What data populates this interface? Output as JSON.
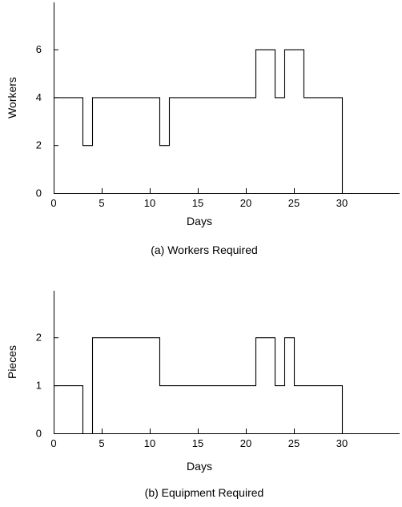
{
  "chart_data": [
    {
      "type": "line",
      "step": true,
      "caption": "(a) Workers Required",
      "xlabel": "Days",
      "ylabel": "Workers",
      "xticks": [
        0,
        5,
        10,
        15,
        20,
        25,
        30
      ],
      "yticks": [
        0,
        2,
        4,
        6
      ],
      "xlim": [
        0,
        36
      ],
      "ylim": [
        0,
        8
      ],
      "grid": false,
      "series": [
        {
          "x": [
            0,
            3,
            3,
            4,
            4,
            11,
            11,
            12,
            12,
            21,
            21,
            23,
            23,
            24,
            24,
            26,
            26,
            30,
            30
          ],
          "y": [
            4,
            4,
            2,
            2,
            4,
            4,
            2,
            2,
            4,
            4,
            6,
            6,
            4,
            4,
            6,
            6,
            4,
            4,
            0
          ]
        }
      ]
    },
    {
      "type": "line",
      "step": true,
      "caption": "(b) Equipment Required",
      "xlabel": "Days",
      "ylabel": "Pieces",
      "xticks": [
        0,
        5,
        10,
        15,
        20,
        25,
        30
      ],
      "yticks": [
        0,
        1,
        2
      ],
      "xlim": [
        0,
        36
      ],
      "ylim": [
        0,
        3
      ],
      "grid": false,
      "series": [
        {
          "x": [
            0,
            3,
            3,
            4,
            4,
            11,
            11,
            21,
            21,
            23,
            23,
            24,
            24,
            25,
            25,
            30,
            30
          ],
          "y": [
            1,
            1,
            0,
            0,
            2,
            2,
            1,
            1,
            2,
            2,
            1,
            1,
            2,
            2,
            1,
            1,
            0
          ]
        }
      ]
    }
  ]
}
